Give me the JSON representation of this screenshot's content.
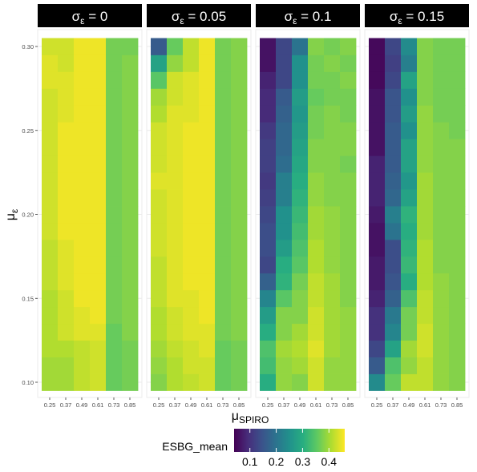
{
  "chart_data": {
    "type": "heatmap",
    "facet_var": "σε",
    "facets": [
      {
        "label": "σ",
        "sub": "ε",
        "value_text": " = 0",
        "columns": [
          [
            0.4,
            0.4,
            0.41,
            0.41,
            0.41,
            0.41,
            0.42,
            0.42,
            0.42,
            0.43,
            0.43,
            0.43,
            0.43,
            0.43,
            0.43,
            0.43,
            0.43,
            0.43,
            0.44,
            0.44,
            0.43
          ],
          [
            0.4,
            0.4,
            0.41,
            0.43,
            0.43,
            0.43,
            0.44,
            0.44,
            0.44,
            0.45,
            0.45,
            0.45,
            0.45,
            0.45,
            0.45,
            0.45,
            0.44,
            0.44,
            0.44,
            0.43,
            0.43
          ],
          [
            0.42,
            0.42,
            0.42,
            0.44,
            0.44,
            0.45,
            0.45,
            0.45,
            0.45,
            0.45,
            0.45,
            0.45,
            0.45,
            0.45,
            0.45,
            0.45,
            0.45,
            0.45,
            0.45,
            0.45,
            0.45
          ],
          [
            0.43,
            0.43,
            0.43,
            0.44,
            0.45,
            0.45,
            0.45,
            0.45,
            0.45,
            0.45,
            0.45,
            0.45,
            0.45,
            0.45,
            0.45,
            0.45,
            0.45,
            0.45,
            0.45,
            0.45,
            0.45
          ],
          [
            0.36,
            0.36,
            0.36,
            0.36,
            0.37,
            0.37,
            0.37,
            0.37,
            0.37,
            0.37,
            0.37,
            0.37,
            0.37,
            0.37,
            0.37,
            0.37,
            0.37,
            0.37,
            0.37,
            0.37,
            0.37
          ],
          [
            0.37,
            0.37,
            0.37,
            0.38,
            0.38,
            0.38,
            0.38,
            0.38,
            0.38,
            0.38,
            0.38,
            0.38,
            0.38,
            0.38,
            0.38,
            0.38,
            0.38,
            0.38,
            0.38,
            0.38,
            0.37
          ]
        ]
      },
      {
        "label": "σ",
        "sub": "ε",
        "value_text": " = 0.05",
        "columns": [
          [
            0.38,
            0.39,
            0.4,
            0.41,
            0.41,
            0.42,
            0.42,
            0.42,
            0.43,
            0.43,
            0.43,
            0.43,
            0.44,
            0.43,
            0.43,
            0.43,
            0.41,
            0.4,
            0.35,
            0.28,
            0.16
          ],
          [
            0.41,
            0.41,
            0.42,
            0.43,
            0.43,
            0.44,
            0.44,
            0.44,
            0.44,
            0.44,
            0.44,
            0.44,
            0.44,
            0.44,
            0.44,
            0.44,
            0.44,
            0.43,
            0.43,
            0.39,
            0.36
          ],
          [
            0.42,
            0.43,
            0.43,
            0.44,
            0.44,
            0.44,
            0.45,
            0.45,
            0.45,
            0.45,
            0.45,
            0.45,
            0.45,
            0.45,
            0.45,
            0.45,
            0.44,
            0.44,
            0.44,
            0.42,
            0.42
          ],
          [
            0.43,
            0.43,
            0.44,
            0.44,
            0.45,
            0.45,
            0.45,
            0.45,
            0.45,
            0.45,
            0.45,
            0.45,
            0.45,
            0.45,
            0.45,
            0.45,
            0.45,
            0.45,
            0.45,
            0.45,
            0.45
          ],
          [
            0.36,
            0.36,
            0.36,
            0.37,
            0.37,
            0.37,
            0.37,
            0.37,
            0.37,
            0.37,
            0.37,
            0.37,
            0.37,
            0.37,
            0.37,
            0.37,
            0.37,
            0.37,
            0.37,
            0.37,
            0.37
          ],
          [
            0.37,
            0.37,
            0.37,
            0.38,
            0.38,
            0.38,
            0.38,
            0.38,
            0.38,
            0.38,
            0.38,
            0.38,
            0.38,
            0.38,
            0.38,
            0.38,
            0.38,
            0.38,
            0.38,
            0.38,
            0.38
          ]
        ]
      },
      {
        "label": "σ",
        "sub": "ε",
        "value_text": " = 0.1",
        "columns": [
          [
            0.3,
            0.33,
            0.34,
            0.3,
            0.27,
            0.23,
            0.17,
            0.13,
            0.14,
            0.14,
            0.13,
            0.12,
            0.11,
            0.12,
            0.12,
            0.11,
            0.09,
            0.09,
            0.08,
            0.06,
            0.06
          ],
          [
            0.39,
            0.39,
            0.4,
            0.38,
            0.38,
            0.35,
            0.31,
            0.3,
            0.27,
            0.25,
            0.25,
            0.22,
            0.22,
            0.19,
            0.18,
            0.18,
            0.17,
            0.16,
            0.13,
            0.13,
            0.13
          ],
          [
            0.38,
            0.4,
            0.41,
            0.4,
            0.38,
            0.38,
            0.37,
            0.35,
            0.34,
            0.33,
            0.32,
            0.31,
            0.3,
            0.29,
            0.28,
            0.27,
            0.26,
            0.27,
            0.25,
            0.25,
            0.2
          ],
          [
            0.43,
            0.43,
            0.44,
            0.43,
            0.43,
            0.42,
            0.42,
            0.41,
            0.41,
            0.4,
            0.4,
            0.39,
            0.39,
            0.38,
            0.38,
            0.37,
            0.37,
            0.36,
            0.37,
            0.37,
            0.38
          ],
          [
            0.39,
            0.39,
            0.4,
            0.4,
            0.4,
            0.4,
            0.4,
            0.39,
            0.39,
            0.39,
            0.39,
            0.38,
            0.38,
            0.38,
            0.38,
            0.38,
            0.38,
            0.37,
            0.37,
            0.38,
            0.37
          ],
          [
            0.39,
            0.39,
            0.39,
            0.39,
            0.39,
            0.38,
            0.38,
            0.38,
            0.38,
            0.38,
            0.38,
            0.38,
            0.38,
            0.37,
            0.38,
            0.38,
            0.37,
            0.37,
            0.38,
            0.37,
            0.38
          ]
        ]
      },
      {
        "label": "σ",
        "sub": "ε",
        "value_text": " = 0.15",
        "columns": [
          [
            0.24,
            0.16,
            0.13,
            0.1,
            0.1,
            0.08,
            0.07,
            0.07,
            0.06,
            0.06,
            0.07,
            0.08,
            0.08,
            0.08,
            0.06,
            0.06,
            0.06,
            0.06,
            0.05,
            0.05,
            0.05
          ],
          [
            0.36,
            0.34,
            0.28,
            0.23,
            0.21,
            0.17,
            0.15,
            0.14,
            0.14,
            0.2,
            0.22,
            0.18,
            0.17,
            0.16,
            0.16,
            0.16,
            0.15,
            0.15,
            0.13,
            0.12,
            0.13
          ],
          [
            0.42,
            0.39,
            0.4,
            0.37,
            0.37,
            0.34,
            0.3,
            0.32,
            0.31,
            0.3,
            0.31,
            0.28,
            0.26,
            0.28,
            0.28,
            0.25,
            0.27,
            0.25,
            0.28,
            0.22,
            0.24
          ],
          [
            0.42,
            0.42,
            0.43,
            0.43,
            0.42,
            0.42,
            0.41,
            0.41,
            0.41,
            0.4,
            0.4,
            0.4,
            0.4,
            0.39,
            0.39,
            0.39,
            0.39,
            0.38,
            0.38,
            0.38,
            0.38
          ],
          [
            0.39,
            0.39,
            0.39,
            0.39,
            0.39,
            0.39,
            0.39,
            0.38,
            0.38,
            0.38,
            0.38,
            0.38,
            0.38,
            0.38,
            0.38,
            0.38,
            0.37,
            0.37,
            0.37,
            0.37,
            0.37
          ],
          [
            0.38,
            0.38,
            0.38,
            0.38,
            0.38,
            0.38,
            0.38,
            0.38,
            0.38,
            0.38,
            0.38,
            0.38,
            0.38,
            0.38,
            0.38,
            0.37,
            0.37,
            0.37,
            0.37,
            0.37,
            0.37
          ]
        ]
      }
    ],
    "x_categories": [
      "0.25",
      "0.37",
      "0.49",
      "0.61",
      "0.73",
      "0.85"
    ],
    "y_values": [
      0.1,
      0.11,
      0.12,
      0.13,
      0.14,
      0.15,
      0.16,
      0.17,
      0.18,
      0.19,
      0.2,
      0.21,
      0.22,
      0.23,
      0.24,
      0.25,
      0.26,
      0.27,
      0.28,
      0.29,
      0.3
    ],
    "y_ticks": [
      "0.10",
      "0.15",
      "0.20",
      "0.25",
      "0.30"
    ],
    "xlabel": {
      "main": "μ",
      "sub": "SPIRO"
    },
    "ylabel": {
      "main": "μ",
      "sub": "ε"
    },
    "legend": {
      "title": "ESBG_mean",
      "position": "bottom",
      "ticks": [
        "0.1",
        "0.2",
        "0.3",
        "0.4"
      ],
      "range": [
        0.04,
        0.46
      ],
      "colormap": "viridis"
    }
  }
}
